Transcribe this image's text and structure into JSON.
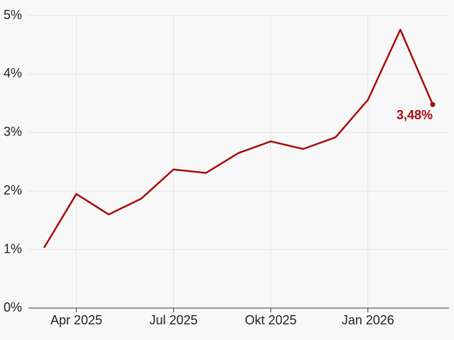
{
  "chart_data": {
    "type": "line",
    "categories": [
      null,
      "Apr 2025",
      null,
      null,
      "Jul 2025",
      null,
      null,
      "Okt 2025",
      null,
      null,
      "Jan 2026",
      null,
      null
    ],
    "series": [
      {
        "color": "#ab0a0a",
        "values": [
          1.03,
          1.95,
          1.6,
          1.87,
          2.37,
          2.31,
          2.65,
          2.85,
          2.72,
          2.92,
          3.56,
          4.76,
          3.48
        ],
        "value_labels": [
          null,
          null,
          null,
          null,
          null,
          null,
          null,
          null,
          null,
          null,
          null,
          null,
          "3,48%"
        ]
      }
    ],
    "ylim": [
      0,
      5
    ],
    "yticks": [
      {
        "value": 0,
        "label": "0%"
      },
      {
        "value": 1,
        "label": "1%"
      },
      {
        "value": 2,
        "label": "2%"
      },
      {
        "value": 3,
        "label": "3%"
      },
      {
        "value": 4,
        "label": "4%"
      },
      {
        "value": 5,
        "label": "5%"
      }
    ],
    "grid": true
  }
}
